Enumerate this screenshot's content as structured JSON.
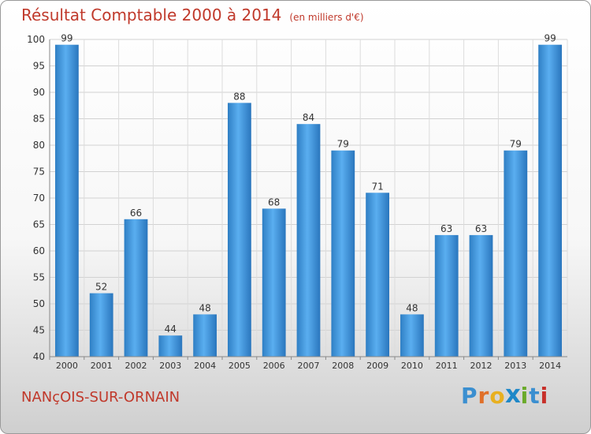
{
  "chart_data": {
    "type": "bar",
    "title": "Résultat Comptable 2000 à 2014",
    "subtitle": "(en milliers d'€)",
    "categories": [
      "2000",
      "2001",
      "2002",
      "2003",
      "2004",
      "2005",
      "2006",
      "2007",
      "2008",
      "2009",
      "2010",
      "2011",
      "2012",
      "2013",
      "2014"
    ],
    "values": [
      99,
      52,
      66,
      44,
      48,
      88,
      68,
      84,
      79,
      71,
      48,
      63,
      63,
      79,
      99
    ],
    "ylim": [
      40,
      100
    ],
    "yticks": [
      40,
      45,
      50,
      55,
      60,
      65,
      70,
      75,
      80,
      85,
      90,
      95,
      100
    ],
    "grid": true,
    "bar_color": "#3d8fd6"
  },
  "footer": {
    "commune": "NANçOIS-SUR-ORNAIN",
    "logo_letters": [
      "P",
      "r",
      "o",
      "x",
      "i",
      "t",
      "i"
    ],
    "logo_colors": [
      "#3b8fd0",
      "#e0702a",
      "#e8b020",
      "#1e88c8",
      "#6aaa2a",
      "#3b8fd0",
      "#c7302a"
    ]
  }
}
